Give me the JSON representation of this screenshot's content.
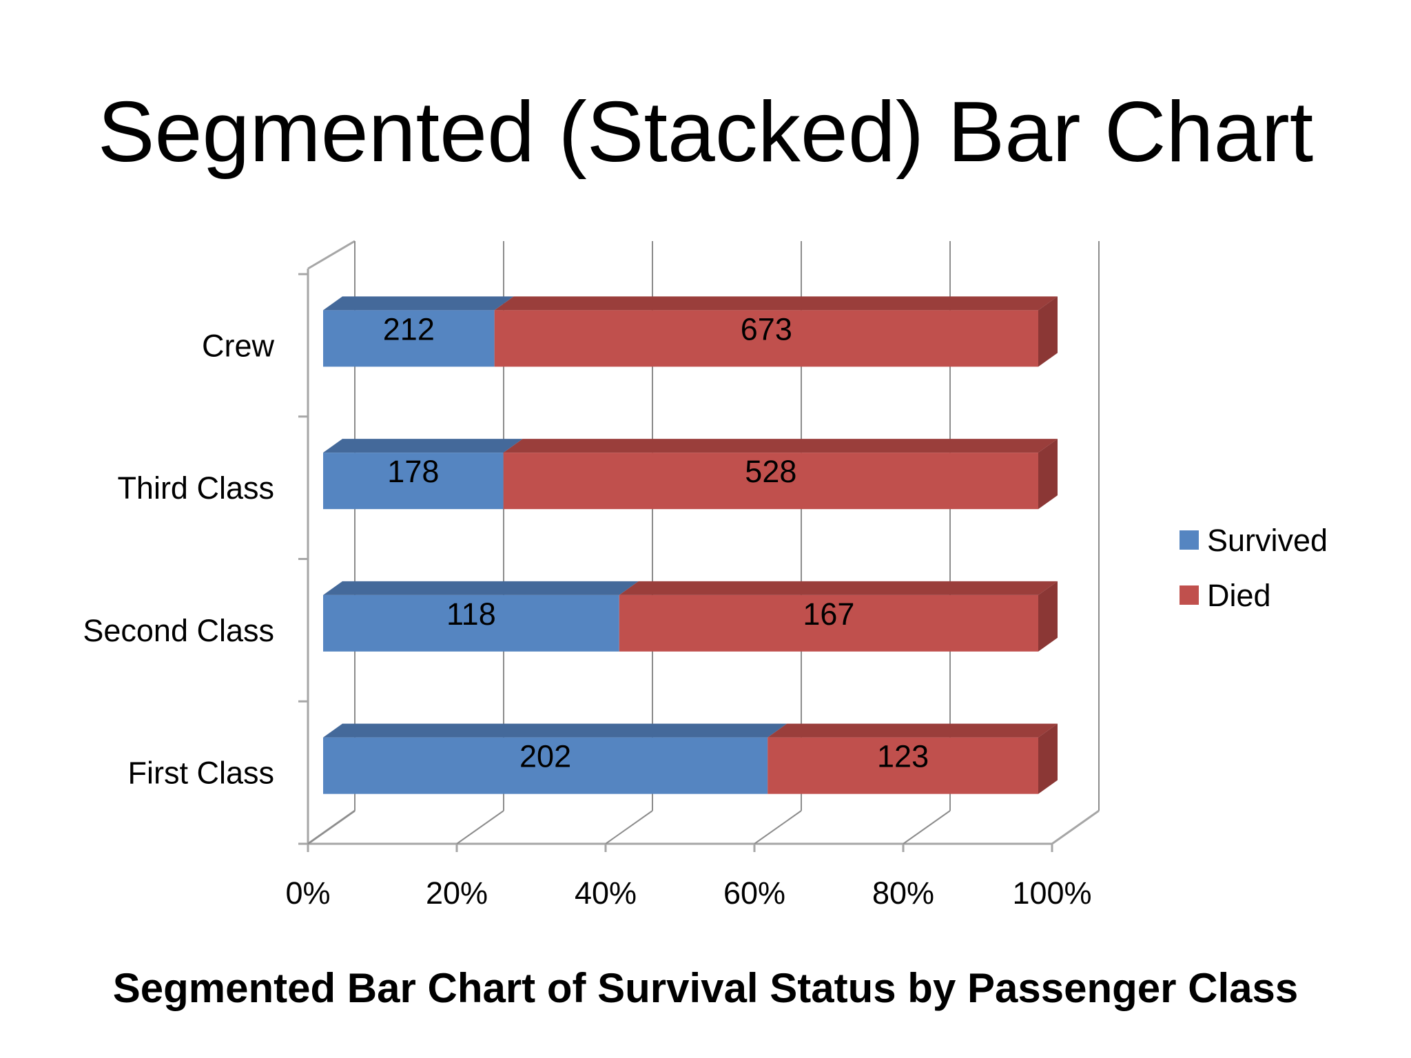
{
  "slide": {
    "title": "Segmented (Stacked) Bar Chart",
    "caption": "Segmented Bar Chart of Survival Status by Passenger Class"
  },
  "chart_data": {
    "type": "bar",
    "orientation": "horizontal",
    "stacked": "percent",
    "style": "3d",
    "categories": [
      "First Class",
      "Second Class",
      "Third Class",
      "Crew"
    ],
    "series": [
      {
        "name": "Survived",
        "values": [
          202,
          118,
          178,
          212
        ],
        "color": "#5585C1",
        "top_color": "#44699A",
        "side_color": "#3E6190"
      },
      {
        "name": "Died",
        "values": [
          123,
          167,
          528,
          673
        ],
        "color": "#C0504D",
        "top_color": "#9A3E3B",
        "side_color": "#8B3735"
      }
    ],
    "x_ticks": [
      "0%",
      "20%",
      "40%",
      "60%",
      "80%",
      "100%"
    ],
    "xlim": [
      0,
      100
    ],
    "grid": true,
    "legend_position": "right",
    "data_labels": true
  }
}
